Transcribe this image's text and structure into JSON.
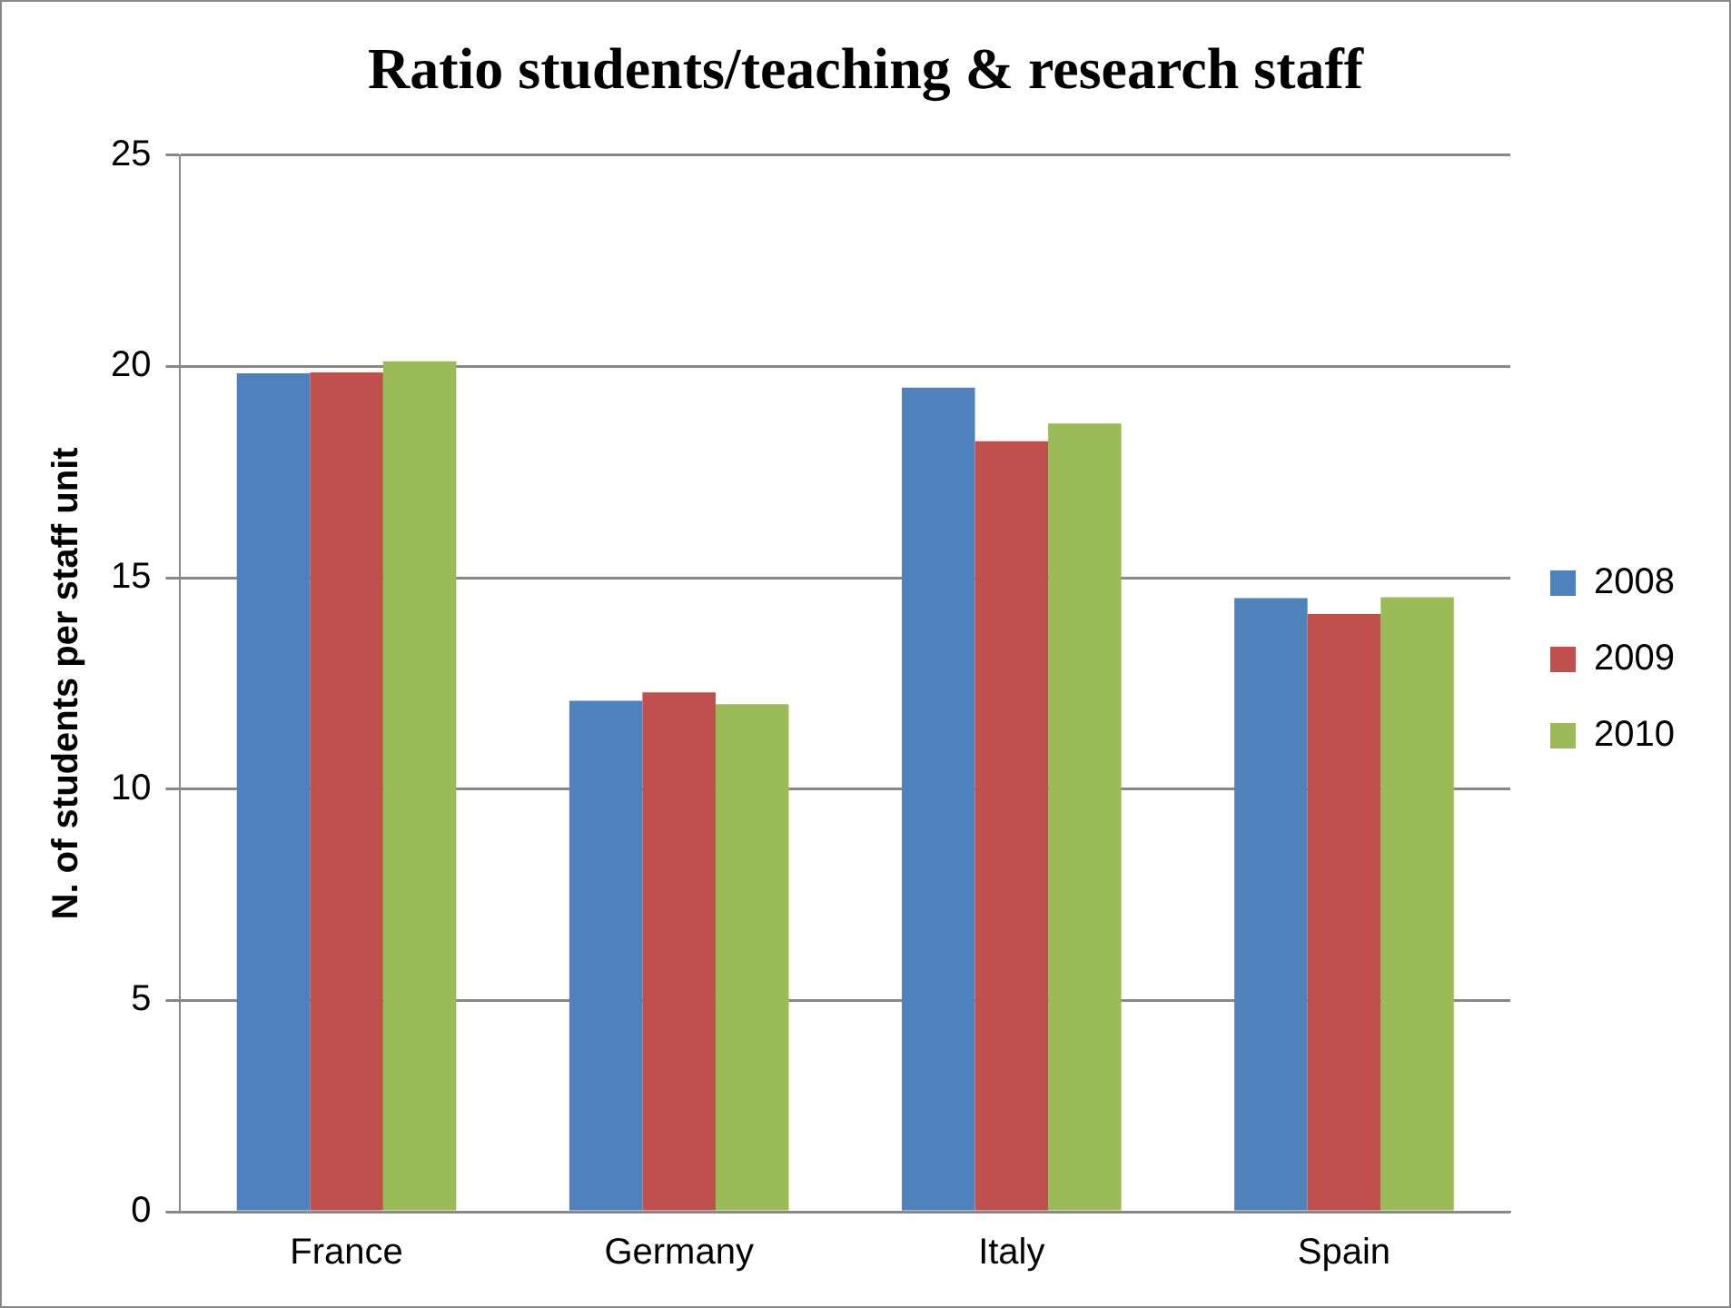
{
  "chart_data": {
    "type": "bar",
    "title": "Ratio students/teaching & research staff",
    "ylabel": "N. of students per staff unit",
    "categories": [
      "France",
      "Germany",
      "Italy",
      "Spain"
    ],
    "series": [
      {
        "name": "2008",
        "color": "#4f81bd",
        "values": [
          19.84,
          12.09,
          19.5,
          14.52
        ]
      },
      {
        "name": "2009",
        "color": "#c0504d",
        "values": [
          19.86,
          12.29,
          18.23,
          14.14
        ]
      },
      {
        "name": "2010",
        "color": "#9bbb59",
        "values": [
          20.12,
          12.01,
          18.65,
          14.54
        ]
      }
    ],
    "ylim": [
      0,
      25
    ],
    "yticks": [
      0,
      5,
      10,
      15,
      20,
      25
    ],
    "grid": "y",
    "legend": "right"
  }
}
